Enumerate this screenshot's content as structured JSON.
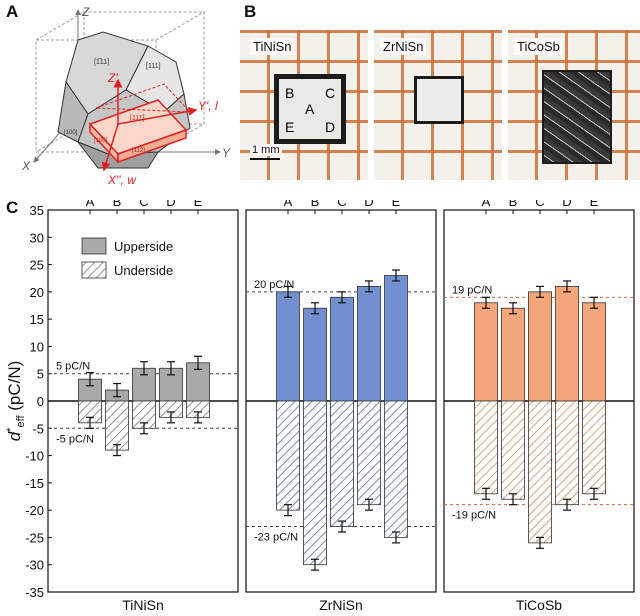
{
  "panels": {
    "a": "A",
    "b": "B",
    "c": "C"
  },
  "crystal": {
    "axis_z": "Z",
    "axis_x": "X",
    "axis_y": "Y",
    "axis_zp": "Z'",
    "axis_yp": "Y', l",
    "axis_xp": "X'', w",
    "face_top1": "[1̅11]",
    "face_top2": "[111]",
    "face_front": "[111]",
    "face_left": "[100]",
    "face_side": "[100]",
    "face_bottom": "[11̅2]"
  },
  "photos": {
    "samples": [
      {
        "name": "TiNiSn",
        "regions": [
          "B",
          "C",
          "A",
          "E",
          "D"
        ]
      },
      {
        "name": "ZrNiSn"
      },
      {
        "name": "TiCoSb"
      }
    ],
    "scale_label": "1 mm"
  },
  "colors": {
    "grey": "#a9a9a9",
    "blue": "#7290cf",
    "orange": "#f3a77b",
    "hatch_blue": "#5a6fa8",
    "hatch_orange": "#cf8a60",
    "hatch_grey": "#777777",
    "orange_ref": "#d4663a"
  },
  "chart_data": {
    "type": "bar",
    "ylabel": "d*eff (pC/N)",
    "ylim": [
      -35,
      35
    ],
    "yticks": [
      35,
      30,
      25,
      20,
      15,
      10,
      5,
      0,
      -5,
      -10,
      -15,
      -20,
      -25,
      -30,
      -35
    ],
    "categories": [
      "A",
      "B",
      "C",
      "D",
      "E"
    ],
    "legend": {
      "upper": "Upperside",
      "under": "Underside",
      "position": "top-left"
    },
    "materials": [
      {
        "name": "TiNiSn",
        "upperside": [
          4,
          2,
          6,
          6,
          7
        ],
        "upperside_err": [
          1.2,
          1.2,
          1.2,
          1.2,
          1.2
        ],
        "underside": [
          -4,
          -9,
          -5,
          -3,
          -3
        ],
        "underside_err": [
          1.0,
          1.0,
          1.0,
          1.0,
          1.0
        ],
        "ref_upper": 5,
        "ref_upper_label": "5 pC/N",
        "ref_under": -5,
        "ref_under_label": "-5 pC/N"
      },
      {
        "name": "ZrNiSn",
        "upperside": [
          20,
          17,
          19,
          21,
          23
        ],
        "upperside_err": [
          1.0,
          1.0,
          1.0,
          1.0,
          1.0
        ],
        "underside": [
          -20,
          -30,
          -23,
          -19,
          -25
        ],
        "underside_err": [
          1.0,
          1.0,
          1.0,
          1.0,
          1.0
        ],
        "ref_upper": 20,
        "ref_upper_label": "20 pC/N",
        "ref_under": -23,
        "ref_under_label": "-23 pC/N"
      },
      {
        "name": "TiCoSb",
        "upperside": [
          18,
          17,
          20,
          21,
          18
        ],
        "upperside_err": [
          1.0,
          1.0,
          1.0,
          1.0,
          1.0
        ],
        "underside": [
          -17,
          -18,
          -26,
          -19,
          -17
        ],
        "underside_err": [
          1.0,
          1.0,
          1.0,
          1.0,
          1.0
        ],
        "ref_upper": 19,
        "ref_upper_label": "19 pC/N",
        "ref_under": -19,
        "ref_under_label": "-19 pC/N"
      }
    ]
  }
}
